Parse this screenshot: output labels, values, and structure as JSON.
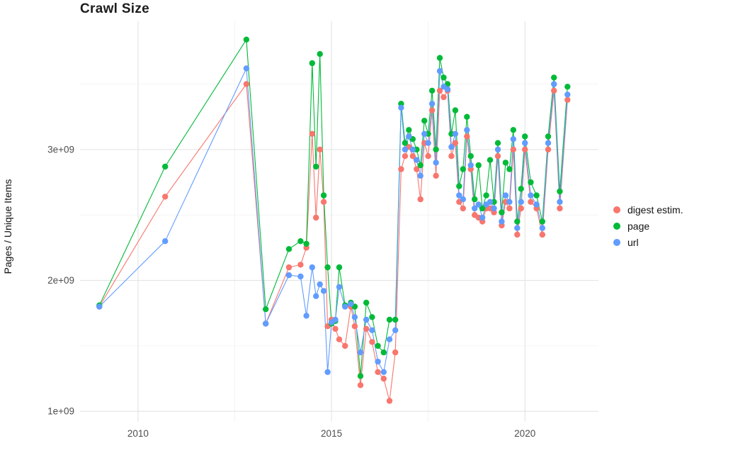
{
  "page": {
    "background": "#ffffff"
  },
  "chart_data": {
    "type": "line",
    "title": "Crawl Size",
    "xlabel": "",
    "ylabel": "Pages / Unique Items",
    "legend_position": "right",
    "grid": true,
    "xlim": [
      2008.5,
      2021.9
    ],
    "ylim": [
      920000000.0,
      3980000000.0
    ],
    "x_ticks": [
      {
        "value": 2010,
        "label": "2010"
      },
      {
        "value": 2015,
        "label": "2015"
      },
      {
        "value": 2020,
        "label": "2020"
      }
    ],
    "x_minor_ticks": [
      2012.5,
      2017.5
    ],
    "y_ticks": [
      {
        "value": 1000000000.0,
        "label": "1e+09"
      },
      {
        "value": 2000000000.0,
        "label": "2e+09"
      },
      {
        "value": 3000000000.0,
        "label": "3e+09"
      }
    ],
    "y_minor_ticks": [
      1500000000.0,
      2500000000.0,
      3500000000.0
    ],
    "colors": {
      "grid_major": "#e4e4e4",
      "grid_minor": "#f1f1f1",
      "tick_text": "#4d4d4d",
      "title_text": "#1c1c1c"
    },
    "x": [
      2009.0,
      2010.7,
      2012.8,
      2013.3,
      2013.9,
      2014.2,
      2014.35,
      2014.5,
      2014.6,
      2014.7,
      2014.8,
      2014.9,
      2015.0,
      2015.1,
      2015.2,
      2015.35,
      2015.5,
      2015.6,
      2015.75,
      2015.9,
      2016.05,
      2016.2,
      2016.35,
      2016.5,
      2016.65,
      2016.8,
      2016.9,
      2017.0,
      2017.1,
      2017.2,
      2017.3,
      2017.4,
      2017.5,
      2017.6,
      2017.7,
      2017.8,
      2017.9,
      2018.0,
      2018.1,
      2018.2,
      2018.3,
      2018.4,
      2018.5,
      2018.6,
      2018.7,
      2018.8,
      2018.9,
      2019.0,
      2019.1,
      2019.2,
      2019.3,
      2019.4,
      2019.5,
      2019.6,
      2019.7,
      2019.8,
      2019.9,
      2020.0,
      2020.15,
      2020.3,
      2020.45,
      2020.6,
      2020.75,
      2020.9,
      2021.1
    ],
    "series": [
      {
        "name": "digest estim.",
        "color": "#f8766d",
        "values": [
          1800000000.0,
          2640000000.0,
          3500000000.0,
          1670000000.0,
          2100000000.0,
          2120000000.0,
          2250000000.0,
          3120000000.0,
          2480000000.0,
          3000000000.0,
          2600000000.0,
          1650000000.0,
          1700000000.0,
          1630000000.0,
          1550000000.0,
          1500000000.0,
          1800000000.0,
          1650000000.0,
          1200000000.0,
          1630000000.0,
          1530000000.0,
          1300000000.0,
          1250000000.0,
          1080000000.0,
          1450000000.0,
          2850000000.0,
          2950000000.0,
          3020000000.0,
          2950000000.0,
          2850000000.0,
          2620000000.0,
          3050000000.0,
          2950000000.0,
          3300000000.0,
          2800000000.0,
          3450000000.0,
          3400000000.0,
          3450000000.0,
          2950000000.0,
          3050000000.0,
          2600000000.0,
          2550000000.0,
          3100000000.0,
          2850000000.0,
          2500000000.0,
          2480000000.0,
          2450000000.0,
          2550000000.0,
          2550000000.0,
          2520000000.0,
          2950000000.0,
          2420000000.0,
          2600000000.0,
          2550000000.0,
          3000000000.0,
          2350000000.0,
          2550000000.0,
          3000000000.0,
          2600000000.0,
          2550000000.0,
          2350000000.0,
          3000000000.0,
          3450000000.0,
          2550000000.0,
          3380000000.0
        ]
      },
      {
        "name": "page",
        "color": "#00ba38",
        "values": [
          1810000000.0,
          2870000000.0,
          3840000000.0,
          1780000000.0,
          2240000000.0,
          2300000000.0,
          2280000000.0,
          3660000000.0,
          2870000000.0,
          3730000000.0,
          2650000000.0,
          2100000000.0,
          1670000000.0,
          1690000000.0,
          2100000000.0,
          1810000000.0,
          1830000000.0,
          1800000000.0,
          1270000000.0,
          1830000000.0,
          1720000000.0,
          1500000000.0,
          1450000000.0,
          1700000000.0,
          1700000000.0,
          3350000000.0,
          3050000000.0,
          3150000000.0,
          3080000000.0,
          3000000000.0,
          2880000000.0,
          3220000000.0,
          3120000000.0,
          3450000000.0,
          3000000000.0,
          3700000000.0,
          3550000000.0,
          3500000000.0,
          3120000000.0,
          3300000000.0,
          2720000000.0,
          2850000000.0,
          3250000000.0,
          2950000000.0,
          2620000000.0,
          2880000000.0,
          2550000000.0,
          2650000000.0,
          2920000000.0,
          2600000000.0,
          3050000000.0,
          2520000000.0,
          2900000000.0,
          2850000000.0,
          3150000000.0,
          2450000000.0,
          2700000000.0,
          3100000000.0,
          2750000000.0,
          2650000000.0,
          2450000000.0,
          3100000000.0,
          3550000000.0,
          2680000000.0,
          3480000000.0
        ]
      },
      {
        "name": "url",
        "color": "#619cff",
        "values": [
          1800000000.0,
          2300000000.0,
          3620000000.0,
          1670000000.0,
          2040000000.0,
          2030000000.0,
          1730000000.0,
          2100000000.0,
          1880000000.0,
          1970000000.0,
          1920000000.0,
          1300000000.0,
          1680000000.0,
          1700000000.0,
          1950000000.0,
          1800000000.0,
          1820000000.0,
          1720000000.0,
          1450000000.0,
          1700000000.0,
          1620000000.0,
          1380000000.0,
          1300000000.0,
          1550000000.0,
          1620000000.0,
          3320000000.0,
          3000000000.0,
          3100000000.0,
          3000000000.0,
          2920000000.0,
          2800000000.0,
          3120000000.0,
          3050000000.0,
          3350000000.0,
          2900000000.0,
          3600000000.0,
          3480000000.0,
          3460000000.0,
          3020000000.0,
          3120000000.0,
          2650000000.0,
          2620000000.0,
          3150000000.0,
          2880000000.0,
          2550000000.0,
          2580000000.0,
          2480000000.0,
          2580000000.0,
          2600000000.0,
          2550000000.0,
          3000000000.0,
          2450000000.0,
          2650000000.0,
          2600000000.0,
          3080000000.0,
          2400000000.0,
          2600000000.0,
          3050000000.0,
          2650000000.0,
          2580000000.0,
          2400000000.0,
          3050000000.0,
          3500000000.0,
          2600000000.0,
          3420000000.0
        ]
      }
    ]
  }
}
